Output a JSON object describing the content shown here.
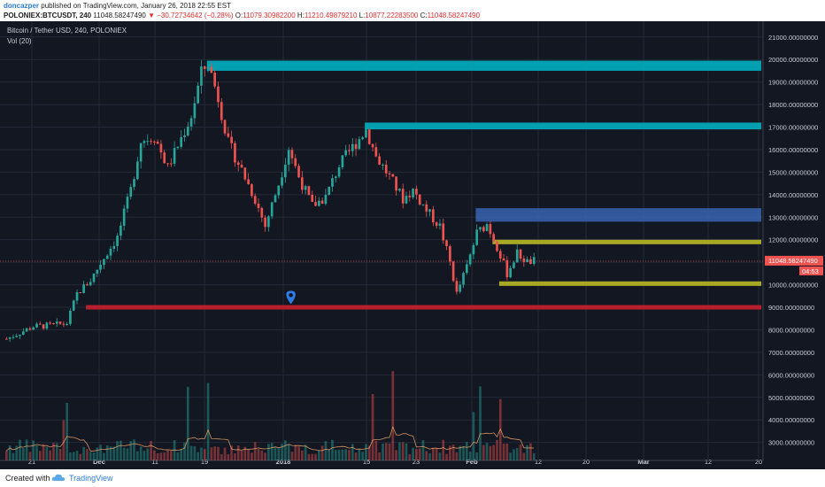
{
  "header": {
    "author": "doncazper",
    "published": "published on TradingView.com, January 26, 2018 22:55 EST",
    "symbol": "POLONIEX:BTCUSDT, 240",
    "last": "11048.58247490",
    "change": "−30.72734642 (−0.28%)",
    "o_label": "O:",
    "o_value": "11079.30982200",
    "h_label": "H:",
    "h_value": "11210.49879210",
    "l_label": "L:",
    "l_value": "10877.22283500",
    "c_label": "C:",
    "c_value": "11048.58247490"
  },
  "overlay": {
    "title": "Bitcoin / Tether USD, 240, POLONIEX",
    "vol": "Vol (20)"
  },
  "price_badge": {
    "value": "11048.58247490",
    "countdown": "04:53"
  },
  "footer": {
    "created": "Created with",
    "brand": "TradingView"
  },
  "colors": {
    "background": "#131722",
    "up": "#26a69a",
    "down": "#ef5350",
    "teal_zone": "#00aebf",
    "blue_zone": "#3d6fc4",
    "olive_zone": "#b8b825",
    "red_zone": "#c8202f",
    "marker": "#2f7ce6",
    "volume_ma": "#f0a868"
  },
  "chart_data": {
    "type": "candlestick",
    "y_axis_ticks": [
      "3000.00000000",
      "4000.00000000",
      "5000.00000000",
      "6000.00000000",
      "7000.00000000",
      "8000.00000000",
      "9000.00000000",
      "10000.00000000",
      "11000.00000000",
      "12000.00000000",
      "13000.00000000",
      "14000.00000000",
      "15000.00000000",
      "16000.00000000",
      "17000.00000000",
      "18000.00000000",
      "19000.00000000",
      "20000.00000000",
      "21000.00000000"
    ],
    "x_axis_ticks": [
      "21",
      "Dec",
      "11",
      "19",
      "2018",
      "15",
      "23",
      "Feb",
      "12",
      "20",
      "Mar",
      "12",
      "20"
    ],
    "ylim": [
      2200,
      21700
    ],
    "price_path": [
      [
        0,
        7600
      ],
      [
        8,
        8150
      ],
      [
        14,
        8200
      ],
      [
        18,
        8300
      ],
      [
        21,
        9600
      ],
      [
        25,
        10200
      ],
      [
        29,
        11200
      ],
      [
        33,
        12100
      ],
      [
        37,
        14200
      ],
      [
        40,
        16400
      ],
      [
        44,
        16600
      ],
      [
        48,
        15200
      ],
      [
        52,
        16500
      ],
      [
        55,
        17500
      ],
      [
        58,
        19400
      ],
      [
        60,
        19850
      ],
      [
        63,
        18300
      ],
      [
        66,
        16300
      ],
      [
        70,
        15100
      ],
      [
        74,
        13800
      ],
      [
        77,
        12600
      ],
      [
        81,
        14500
      ],
      [
        84,
        16100
      ],
      [
        87,
        14800
      ],
      [
        91,
        13500
      ],
      [
        95,
        13900
      ],
      [
        99,
        15300
      ],
      [
        104,
        16300
      ],
      [
        107,
        16900
      ],
      [
        110,
        15700
      ],
      [
        114,
        14800
      ],
      [
        118,
        13800
      ],
      [
        121,
        14200
      ],
      [
        125,
        13300
      ],
      [
        129,
        12600
      ],
      [
        132,
        11000
      ],
      [
        134,
        9600
      ],
      [
        137,
        10800
      ],
      [
        140,
        12300
      ],
      [
        143,
        12700
      ],
      [
        146,
        11700
      ],
      [
        149,
        10500
      ],
      [
        152,
        11400
      ],
      [
        155,
        11000
      ],
      [
        157,
        11050
      ]
    ],
    "zones": [
      {
        "color": "teal",
        "from": 19500,
        "to": 19950,
        "x_start": 60,
        "x_end": 225
      },
      {
        "color": "teal",
        "from": 16900,
        "to": 17200,
        "x_start": 107,
        "x_end": 225
      },
      {
        "color": "blue",
        "from": 12800,
        "to": 13400,
        "x_start": 140,
        "x_end": 225
      },
      {
        "color": "olive",
        "from": 11800,
        "to": 12000,
        "x_start": 145,
        "x_end": 225
      },
      {
        "color": "olive",
        "from": 9950,
        "to": 10150,
        "x_start": 147,
        "x_end": 225
      },
      {
        "color": "red",
        "from": 8900,
        "to": 9100,
        "x_start": 24,
        "x_end": 225
      }
    ],
    "current_price": 11048.58,
    "marker": {
      "x": 85,
      "y": 9500
    },
    "x_bar_count": 225
  }
}
